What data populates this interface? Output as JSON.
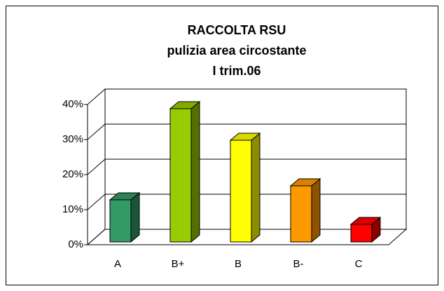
{
  "chart_data": {
    "type": "bar3d",
    "title": [
      "RACCOLTA RSU",
      "pulizia area circostante",
      "I trim.06"
    ],
    "categories": [
      "A",
      "B+",
      "B",
      "B-",
      "C"
    ],
    "values": [
      12,
      38,
      29,
      16,
      5
    ],
    "colors": [
      "#339966",
      "#99cc00",
      "#ffff00",
      "#ff9900",
      "#ff0000"
    ],
    "ylim": [
      0,
      40
    ],
    "yticks": [
      {
        "value": 0,
        "label": "0%"
      },
      {
        "value": 10,
        "label": "10%"
      },
      {
        "value": 20,
        "label": "20%"
      },
      {
        "value": 30,
        "label": "30%"
      },
      {
        "value": 40,
        "label": "40%"
      }
    ],
    "grid": true
  }
}
